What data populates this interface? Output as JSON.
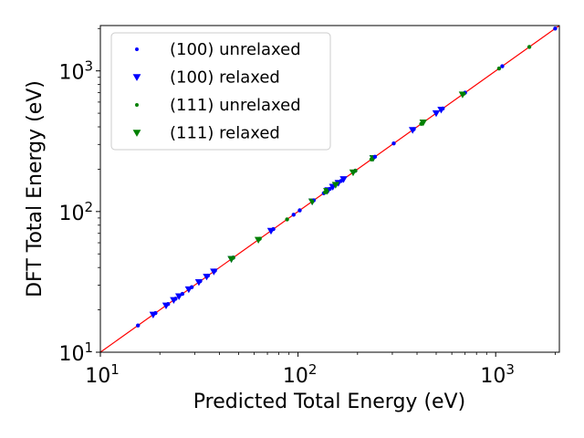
{
  "chart_data": {
    "type": "scatter",
    "xlabel": "Predicted Total Energy (eV)",
    "ylabel": "DFT Total Energy (eV)",
    "xscale": "log",
    "yscale": "log",
    "xlim": [
      10,
      2100
    ],
    "ylim": [
      10,
      2100
    ],
    "xticks": [
      {
        "base": "10",
        "exp": "1",
        "value": 10
      },
      {
        "base": "10",
        "exp": "2",
        "value": 100
      },
      {
        "base": "10",
        "exp": "3",
        "value": 1000
      }
    ],
    "yticks": [
      {
        "base": "10",
        "exp": "1",
        "value": 10
      },
      {
        "base": "10",
        "exp": "2",
        "value": 100
      },
      {
        "base": "10",
        "exp": "3",
        "value": 1000
      }
    ],
    "reference_line": {
      "name": "y = x",
      "color": "#ff0000"
    },
    "legend_position": "top-left",
    "series": [
      {
        "name": "(100) unrelaxed",
        "marker": "dot",
        "color": "#0000ff",
        "x": [
          15.5,
          19.0,
          22.0,
          24.0,
          26.0,
          29.0,
          32.0,
          35.0,
          38.0,
          47.0,
          75.0,
          95.0,
          102.0,
          120.0,
          135.0,
          145.0,
          165.0,
          195.0,
          245.0,
          305.0,
          385.0,
          540.0,
          700.0,
          1080.0,
          2000.0
        ],
        "y": [
          15.5,
          19.0,
          22.0,
          24.0,
          26.0,
          29.0,
          32.0,
          35.0,
          38.0,
          47.0,
          75.0,
          95.0,
          102.0,
          120.0,
          135.0,
          145.0,
          165.0,
          195.0,
          245.0,
          305.0,
          385.0,
          540.0,
          700.0,
          1080.0,
          2000.0
        ]
      },
      {
        "name": "(100) relaxed",
        "marker": "triangle-down",
        "color": "#0000ff",
        "x": [
          18.5,
          21.5,
          23.5,
          25.0,
          28.0,
          31.5,
          34.5,
          37.5,
          46.0,
          73.0,
          118.0,
          142.0,
          150.0,
          160.0,
          170.0,
          240.0,
          380.0,
          500.0,
          530.0
        ],
        "y": [
          18.5,
          21.5,
          23.5,
          25.0,
          28.0,
          31.5,
          34.5,
          37.5,
          46.0,
          73.0,
          118.0,
          142.0,
          150.0,
          160.0,
          170.0,
          240.0,
          380.0,
          500.0,
          530.0
        ]
      },
      {
        "name": "(111) unrelaxed",
        "marker": "dot",
        "color": "#008000",
        "x": [
          47.0,
          64.0,
          88.0,
          118.0,
          137.0,
          195.0,
          235.0,
          420.0,
          690.0,
          1040.0,
          1480.0
        ],
        "y": [
          47.0,
          64.0,
          88.0,
          118.0,
          137.0,
          195.0,
          235.0,
          420.0,
          690.0,
          1040.0,
          1480.0
        ]
      },
      {
        "name": "(111) relaxed",
        "marker": "triangle-down",
        "color": "#008000",
        "x": [
          46.0,
          63.0,
          118.0,
          140.0,
          155.0,
          190.0,
          240.0,
          430.0,
          680.0
        ],
        "y": [
          46.0,
          63.0,
          118.0,
          140.0,
          155.0,
          190.0,
          240.0,
          430.0,
          680.0
        ]
      }
    ]
  }
}
